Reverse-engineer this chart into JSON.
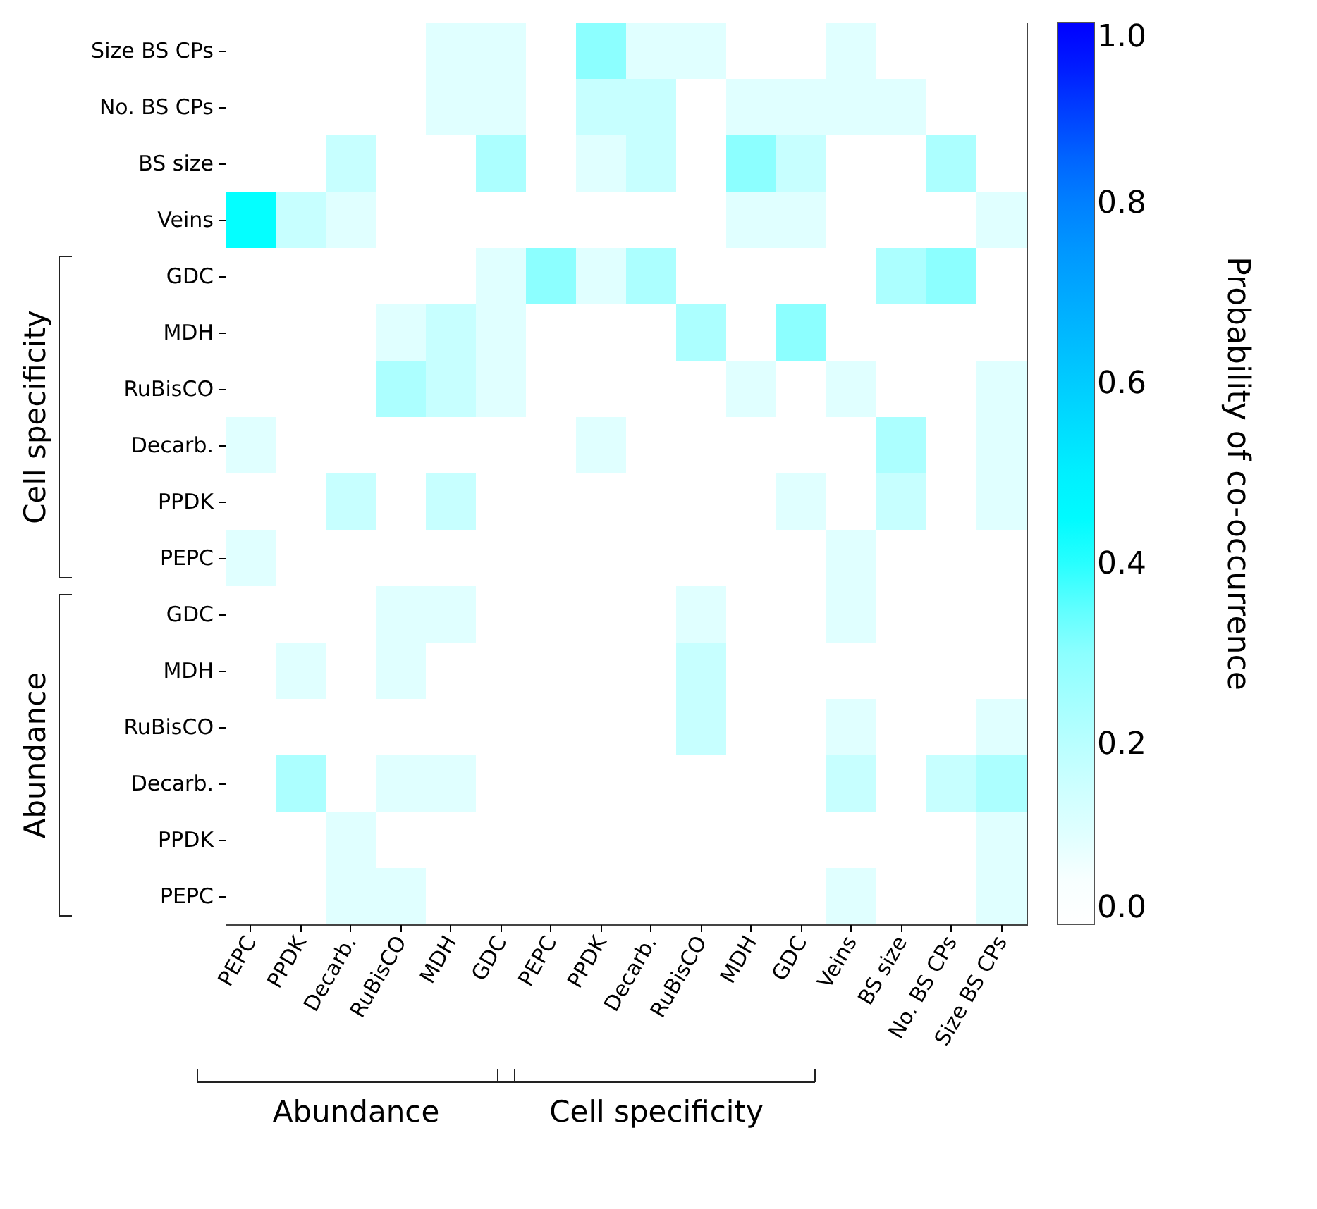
{
  "chart_data": {
    "type": "heatmap",
    "categories": [
      "PEPC",
      "PPDK",
      "Decarb.",
      "RuBisCO",
      "MDH",
      "GDC",
      "PEPC",
      "PPDK",
      "Decarb.",
      "RuBisCO",
      "MDH",
      "GDC",
      "Veins",
      "BS size",
      "No. BS CPs",
      "Size BS CPs"
    ],
    "y_categories": [
      "Size BS CPs",
      "No. BS CPs",
      "BS size",
      "Veins",
      "GDC",
      "MDH",
      "RuBisCO",
      "Decarb.",
      "PPDK",
      "PEPC",
      "GDC",
      "MDH",
      "RuBisCO",
      "Decarb.",
      "PPDK",
      "PEPC"
    ],
    "cells": [
      [
        0,
        0,
        0,
        0,
        0.1,
        0.1,
        0,
        0.3,
        0.1,
        0.1,
        0,
        0,
        0.1,
        0,
        0,
        0
      ],
      [
        0,
        0,
        0,
        0,
        0.1,
        0.1,
        0,
        0.17,
        0.17,
        0,
        0.1,
        0.1,
        0.1,
        0.1,
        0,
        0
      ],
      [
        0,
        0,
        0.17,
        0,
        0,
        0.23,
        0,
        0.1,
        0.17,
        0,
        0.3,
        0.17,
        0,
        0,
        0.23,
        0
      ],
      [
        0.43,
        0.17,
        0.1,
        0,
        0,
        0,
        0,
        0,
        0,
        0,
        0.1,
        0.1,
        0,
        0,
        0,
        0.1
      ],
      [
        0,
        0,
        0,
        0,
        0,
        0.1,
        0.3,
        0.1,
        0.23,
        0,
        0,
        0,
        0,
        0.23,
        0.3,
        0
      ],
      [
        0,
        0,
        0,
        0.1,
        0.17,
        0.1,
        0,
        0,
        0,
        0.23,
        0,
        0.3,
        0,
        0,
        0,
        0
      ],
      [
        0,
        0,
        0,
        0.23,
        0.17,
        0.1,
        0,
        0,
        0,
        0,
        0.1,
        0,
        0.1,
        0,
        0,
        0.1
      ],
      [
        0.1,
        0,
        0,
        0,
        0,
        0,
        0,
        0.1,
        0,
        0,
        0,
        0,
        0,
        0.23,
        0,
        0.1
      ],
      [
        0,
        0,
        0.17,
        0,
        0.17,
        0,
        0,
        0,
        0,
        0,
        0,
        0.1,
        0,
        0.17,
        0,
        0.1
      ],
      [
        0.1,
        0,
        0,
        0,
        0,
        0,
        0,
        0,
        0,
        0,
        0,
        0,
        0.1,
        0,
        0,
        0
      ],
      [
        0,
        0,
        0,
        0.1,
        0.1,
        0,
        0,
        0,
        0,
        0.1,
        0,
        0,
        0.1,
        0,
        0,
        0
      ],
      [
        0,
        0.1,
        0,
        0.1,
        0,
        0,
        0,
        0,
        0,
        0.17,
        0,
        0,
        0,
        0,
        0,
        0
      ],
      [
        0,
        0,
        0,
        0,
        0,
        0,
        0,
        0,
        0,
        0.17,
        0,
        0,
        0.1,
        0,
        0,
        0.1
      ],
      [
        0,
        0.23,
        0,
        0.1,
        0.1,
        0,
        0,
        0,
        0,
        0,
        0,
        0,
        0.17,
        0,
        0.17,
        0.23
      ],
      [
        0,
        0,
        0.1,
        0,
        0,
        0,
        0,
        0,
        0,
        0,
        0,
        0,
        0,
        0,
        0,
        0.1
      ],
      [
        0,
        0,
        0.1,
        0.1,
        0,
        0,
        0,
        0,
        0,
        0,
        0,
        0,
        0.1,
        0,
        0,
        0.1
      ]
    ],
    "clabel": "Probability of co-occurrence",
    "clim": [
      0,
      1
    ],
    "cticks": [
      {
        "value": 0,
        "label": "0.0"
      },
      {
        "value": 0.2,
        "label": "0.2"
      },
      {
        "value": 0.4,
        "label": "0.4"
      },
      {
        "value": 0.6,
        "label": "0.6"
      },
      {
        "value": 0.8,
        "label": "0.8"
      },
      {
        "value": 1,
        "label": "1.0"
      }
    ],
    "annotations": [
      "Cell specificity",
      "Abundance",
      "Abundance",
      "Cell specificity"
    ]
  }
}
